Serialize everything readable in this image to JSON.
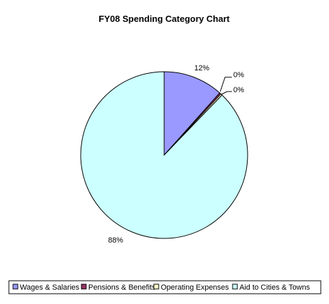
{
  "chart_data": {
    "type": "pie",
    "title": "FY08 Spending Category Chart",
    "slices": [
      {
        "label": "Wages & Salaries",
        "value": 11.6,
        "display": "12%",
        "color": "#9999ff"
      },
      {
        "label": "Pensions & Benefits",
        "value": 0.3,
        "display": "0%",
        "color": "#993366"
      },
      {
        "label": "Operating Expenses",
        "value": 0.3,
        "display": "0%",
        "color": "#ffffcc"
      },
      {
        "label": "Aid to Cities & Towns",
        "value": 87.8,
        "display": "88%",
        "color": "#ccffff"
      }
    ],
    "legend_position": "bottom"
  }
}
